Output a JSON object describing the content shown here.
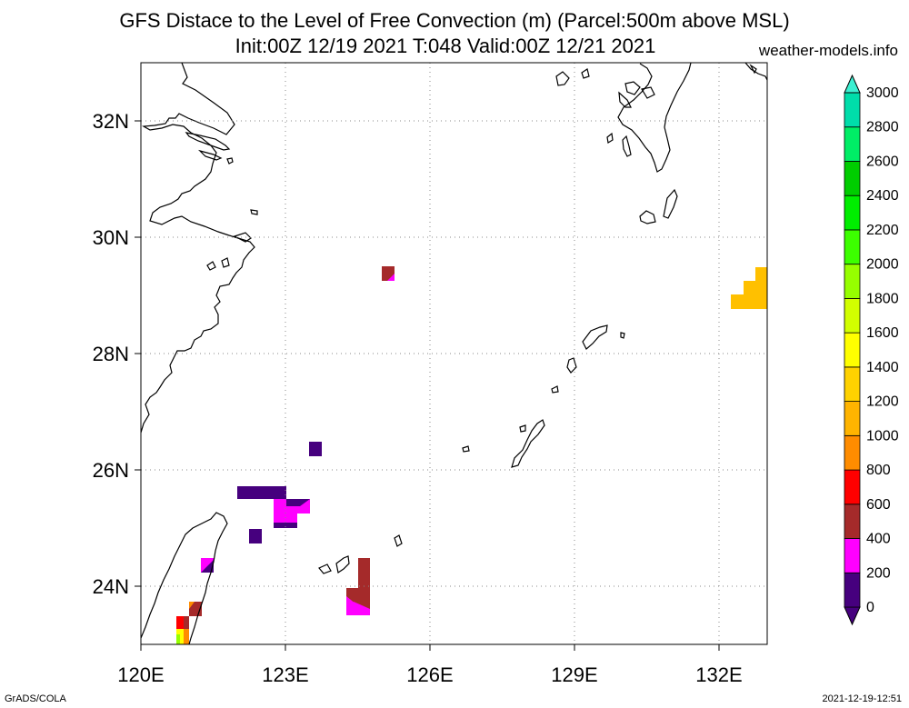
{
  "header": {
    "title_line1": "GFS Distace to the Level of Free Convection (m) (Parcel:500m above MSL)",
    "title_line2": "Init:00Z 12/19 2021 T:048 Valid:00Z 12/21 2021",
    "site": "weather-models.info"
  },
  "footer": {
    "left": "GrADS/COLA",
    "right": "2021-12-19-12:51"
  },
  "map": {
    "lon_labels": [
      "120E",
      "123E",
      "126E",
      "129E",
      "132E"
    ],
    "lat_labels": [
      "32N",
      "30N",
      "28N",
      "26N",
      "24N"
    ],
    "lon_range": [
      120,
      133
    ],
    "lat_range": [
      23,
      33
    ],
    "grid": "dotted",
    "colors": {
      "land_outline": "#000000",
      "background": "#ffffff"
    }
  },
  "colorbar": {
    "labels": [
      "0",
      "200",
      "400",
      "600",
      "800",
      "1000",
      "1200",
      "1400",
      "1600",
      "1800",
      "2000",
      "2200",
      "2400",
      "2600",
      "2800",
      "3000"
    ],
    "colors": [
      "#46007e",
      "#ff00ff",
      "#a52a2a",
      "#ff0000",
      "#ff8c00",
      "#ffb400",
      "#ffd200",
      "#ffff00",
      "#d2ff00",
      "#96ff00",
      "#3cff00",
      "#00ee00",
      "#00cd00",
      "#00ee66",
      "#00ddaa",
      "#00ffdd"
    ],
    "min_triangle_color": "#46007e",
    "max_triangle_color": "#3cf0d2"
  }
}
